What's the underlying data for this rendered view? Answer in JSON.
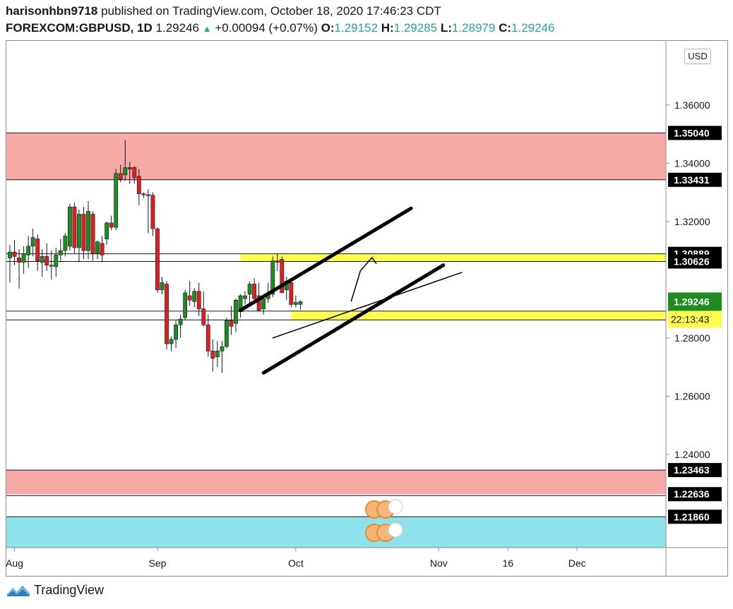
{
  "header": {
    "author": "harisonhbn9718",
    "published_text": "published on TradingView.com, October 18, 2020 17:46:23 CDT",
    "symbol": "FOREXCOM:GBPUSD, 1D",
    "last_price": "1.29246",
    "change": "+0.00094 (+0.07%)",
    "open_label": "O:",
    "open": "1.29152",
    "high_label": "H:",
    "high": "1.29285",
    "low_label": "L:",
    "low": "1.28979",
    "close_label": "C:",
    "close": "1.29246"
  },
  "currency_badge": "USD",
  "footer": {
    "brand": "TradingView"
  },
  "colors": {
    "up": "#26a69a",
    "up_candle": "#1e8c1e",
    "down_candle": "#e0201f",
    "supply_zone": "#f7aaa6",
    "demand_zone": "#8ee2ec",
    "yellow_zone": "#ffff4d",
    "last_price_bg": "#1e8c1e"
  },
  "chart_data": {
    "type": "candlestick",
    "symbol": "GBPUSD",
    "timeframe": "1D",
    "y_ticks": [
      "1.36000",
      "1.34000",
      "1.32000",
      "1.28000",
      "1.26000",
      "1.24000"
    ],
    "ylim": [
      1.208,
      1.382
    ],
    "x_ticks": [
      {
        "label": "Aug",
        "day": 1
      },
      {
        "label": "Sep",
        "day": 32
      },
      {
        "label": "Oct",
        "day": 62
      },
      {
        "label": "Nov",
        "day": 93
      },
      {
        "label": "16",
        "day": 108
      },
      {
        "label": "Dec",
        "day": 123
      }
    ],
    "price_levels": [
      {
        "label": "1.35040",
        "value": 1.3504
      },
      {
        "label": "1.33431",
        "value": 1.33431
      },
      {
        "label": "1.30889",
        "value": 1.30889
      },
      {
        "label": "1.30626",
        "value": 1.30626
      },
      {
        "label": "1.23463",
        "value": 1.23463
      },
      {
        "label": "1.22636",
        "value": 1.22636
      },
      {
        "label": "1.21860",
        "value": 1.2186
      }
    ],
    "last_price": {
      "label": "1.29246",
      "value": 1.29246,
      "countdown": "22:13:43"
    },
    "zones": [
      {
        "name": "supply-zone-top",
        "from": 1.33431,
        "to": 1.3504,
        "start_day": 0
      },
      {
        "name": "yellow-zone-upper",
        "from": 1.30626,
        "to": 1.30889,
        "start_day": 50
      },
      {
        "name": "yellow-zone-lower",
        "from": 1.2862,
        "to": 1.2892,
        "start_day": 61
      },
      {
        "name": "supply-zone-bottom",
        "from": 1.22636,
        "to": 1.23463,
        "start_day": 0
      },
      {
        "name": "demand-zone",
        "from": 1.208,
        "to": 1.2186,
        "start_day": 0
      }
    ],
    "trendlines": [
      {
        "name": "channel-upper",
        "x1": 50,
        "y1": 1.2895,
        "x2": 87,
        "y2": 1.3245,
        "width": 5
      },
      {
        "name": "channel-lower",
        "x1": 55,
        "y1": 1.268,
        "x2": 94,
        "y2": 1.305,
        "width": 5
      },
      {
        "name": "thin-trendline",
        "x1": 57,
        "y1": 1.28,
        "x2": 98,
        "y2": 1.3025,
        "width": 1.5
      }
    ],
    "projection_arrow": {
      "points": [
        [
          74,
          1.2925
        ],
        [
          76,
          1.303
        ],
        [
          78.5,
          1.3076
        ],
        [
          79.5,
          1.3055
        ]
      ]
    },
    "candles": [
      {
        "day": 0,
        "o": 1.3075,
        "h": 1.312,
        "l": 1.299,
        "c": 1.3095
      },
      {
        "day": 1,
        "o": 1.3095,
        "h": 1.3135,
        "l": 1.305,
        "c": 1.308
      },
      {
        "day": 2,
        "o": 1.3075,
        "h": 1.3105,
        "l": 1.297,
        "c": 1.306
      },
      {
        "day": 3,
        "o": 1.306,
        "h": 1.3115,
        "l": 1.302,
        "c": 1.309
      },
      {
        "day": 4,
        "o": 1.3085,
        "h": 1.315,
        "l": 1.304,
        "c": 1.3115
      },
      {
        "day": 5,
        "o": 1.3115,
        "h": 1.3175,
        "l": 1.308,
        "c": 1.3145
      },
      {
        "day": 6,
        "o": 1.314,
        "h": 1.3155,
        "l": 1.303,
        "c": 1.3065
      },
      {
        "day": 7,
        "o": 1.306,
        "h": 1.3105,
        "l": 1.301,
        "c": 1.308
      },
      {
        "day": 8,
        "o": 1.308,
        "h": 1.3125,
        "l": 1.303,
        "c": 1.305
      },
      {
        "day": 9,
        "o": 1.305,
        "h": 1.31,
        "l": 1.3,
        "c": 1.305
      },
      {
        "day": 10,
        "o": 1.3045,
        "h": 1.311,
        "l": 1.301,
        "c": 1.3085
      },
      {
        "day": 11,
        "o": 1.3085,
        "h": 1.314,
        "l": 1.306,
        "c": 1.31
      },
      {
        "day": 12,
        "o": 1.31,
        "h": 1.316,
        "l": 1.308,
        "c": 1.315
      },
      {
        "day": 13,
        "o": 1.3115,
        "h": 1.326,
        "l": 1.31,
        "c": 1.325
      },
      {
        "day": 14,
        "o": 1.325,
        "h": 1.3265,
        "l": 1.309,
        "c": 1.311
      },
      {
        "day": 15,
        "o": 1.311,
        "h": 1.324,
        "l": 1.306,
        "c": 1.3225
      },
      {
        "day": 16,
        "o": 1.3225,
        "h": 1.325,
        "l": 1.307,
        "c": 1.31
      },
      {
        "day": 17,
        "o": 1.31,
        "h": 1.327,
        "l": 1.307,
        "c": 1.3235
      },
      {
        "day": 18,
        "o": 1.3225,
        "h": 1.3235,
        "l": 1.3065,
        "c": 1.309
      },
      {
        "day": 19,
        "o": 1.309,
        "h": 1.3135,
        "l": 1.307,
        "c": 1.313
      },
      {
        "day": 20,
        "o": 1.3125,
        "h": 1.315,
        "l": 1.306,
        "c": 1.3085
      },
      {
        "day": 21,
        "o": 1.314,
        "h": 1.32,
        "l": 1.312,
        "c": 1.3195
      },
      {
        "day": 22,
        "o": 1.3195,
        "h": 1.322,
        "l": 1.317,
        "c": 1.318
      },
      {
        "day": 23,
        "o": 1.318,
        "h": 1.338,
        "l": 1.317,
        "c": 1.3365
      },
      {
        "day": 24,
        "o": 1.3365,
        "h": 1.3395,
        "l": 1.3335,
        "c": 1.3345
      },
      {
        "day": 25,
        "o": 1.336,
        "h": 1.348,
        "l": 1.334,
        "c": 1.3385
      },
      {
        "day": 26,
        "o": 1.3385,
        "h": 1.3405,
        "l": 1.333,
        "c": 1.338
      },
      {
        "day": 27,
        "o": 1.3385,
        "h": 1.339,
        "l": 1.333,
        "c": 1.335
      },
      {
        "day": 28,
        "o": 1.3355,
        "h": 1.338,
        "l": 1.3255,
        "c": 1.3295
      },
      {
        "day": 29,
        "o": 1.3295,
        "h": 1.33,
        "l": 1.328,
        "c": 1.3292
      },
      {
        "day": 30,
        "o": 1.3292,
        "h": 1.331,
        "l": 1.316,
        "c": 1.329
      },
      {
        "day": 31,
        "o": 1.329,
        "h": 1.33,
        "l": 1.315,
        "c": 1.3175
      },
      {
        "day": 32,
        "o": 1.3175,
        "h": 1.318,
        "l": 1.2955,
        "c": 1.2965
      },
      {
        "day": 33,
        "o": 1.2965,
        "h": 1.301,
        "l": 1.295,
        "c": 1.299
      },
      {
        "day": 34,
        "o": 1.2985,
        "h": 1.2995,
        "l": 1.276,
        "c": 1.278
      },
      {
        "day": 35,
        "o": 1.278,
        "h": 1.2805,
        "l": 1.2755,
        "c": 1.2795
      },
      {
        "day": 36,
        "o": 1.2795,
        "h": 1.286,
        "l": 1.2765,
        "c": 1.2845
      },
      {
        "day": 37,
        "o": 1.2845,
        "h": 1.288,
        "l": 1.28,
        "c": 1.2865
      },
      {
        "day": 38,
        "o": 1.287,
        "h": 1.2965,
        "l": 1.286,
        "c": 1.2955
      },
      {
        "day": 39,
        "o": 1.2945,
        "h": 1.2995,
        "l": 1.291,
        "c": 1.293
      },
      {
        "day": 40,
        "o": 1.2925,
        "h": 1.297,
        "l": 1.2905,
        "c": 1.296
      },
      {
        "day": 41,
        "o": 1.296,
        "h": 1.299,
        "l": 1.2875,
        "c": 1.29
      },
      {
        "day": 42,
        "o": 1.29,
        "h": 1.296,
        "l": 1.284,
        "c": 1.2845
      },
      {
        "day": 43,
        "o": 1.2845,
        "h": 1.288,
        "l": 1.2735,
        "c": 1.2755
      },
      {
        "day": 44,
        "o": 1.2755,
        "h": 1.2795,
        "l": 1.2685,
        "c": 1.273
      },
      {
        "day": 45,
        "o": 1.2735,
        "h": 1.279,
        "l": 1.27,
        "c": 1.2755
      },
      {
        "day": 46,
        "o": 1.2755,
        "h": 1.279,
        "l": 1.268,
        "c": 1.277
      },
      {
        "day": 47,
        "o": 1.277,
        "h": 1.287,
        "l": 1.2765,
        "c": 1.286
      },
      {
        "day": 48,
        "o": 1.286,
        "h": 1.291,
        "l": 1.281,
        "c": 1.284
      },
      {
        "day": 49,
        "o": 1.285,
        "h": 1.2935,
        "l": 1.282,
        "c": 1.293
      },
      {
        "day": 50,
        "o": 1.289,
        "h": 1.295,
        "l": 1.287,
        "c": 1.2945
      },
      {
        "day": 51,
        "o": 1.2935,
        "h": 1.296,
        "l": 1.2915,
        "c": 1.2945
      },
      {
        "day": 52,
        "o": 1.295,
        "h": 1.2995,
        "l": 1.292,
        "c": 1.2985
      },
      {
        "day": 53,
        "o": 1.2985,
        "h": 1.3005,
        "l": 1.292,
        "c": 1.2935
      },
      {
        "day": 54,
        "o": 1.2945,
        "h": 1.299,
        "l": 1.289,
        "c": 1.2895
      },
      {
        "day": 55,
        "o": 1.29,
        "h": 1.295,
        "l": 1.288,
        "c": 1.2935
      },
      {
        "day": 56,
        "o": 1.2935,
        "h": 1.299,
        "l": 1.292,
        "c": 1.295
      },
      {
        "day": 57,
        "o": 1.295,
        "h": 1.308,
        "l": 1.294,
        "c": 1.3065
      },
      {
        "day": 58,
        "o": 1.3065,
        "h": 1.309,
        "l": 1.303,
        "c": 1.306
      },
      {
        "day": 59,
        "o": 1.307,
        "h": 1.308,
        "l": 1.2955,
        "c": 1.2955
      },
      {
        "day": 60,
        "o": 1.2965,
        "h": 1.301,
        "l": 1.293,
        "c": 1.2995
      },
      {
        "day": 61,
        "o": 1.299,
        "h": 1.2995,
        "l": 1.2905,
        "c": 1.2915
      },
      {
        "day": 62,
        "o": 1.2915,
        "h": 1.2945,
        "l": 1.2905,
        "c": 1.2922
      },
      {
        "day": 63,
        "o": 1.29152,
        "h": 1.29285,
        "l": 1.28979,
        "c": 1.29246
      }
    ]
  }
}
